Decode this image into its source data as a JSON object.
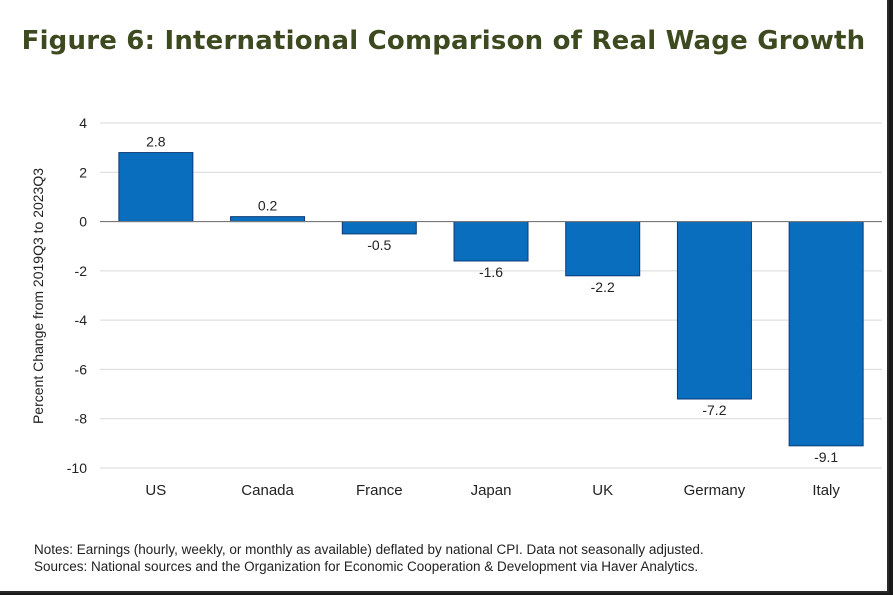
{
  "title": "Figure 6: International Comparison of Real Wage Growth",
  "chart_data": {
    "type": "bar",
    "categories": [
      "US",
      "Canada",
      "France",
      "Japan",
      "UK",
      "Germany",
      "Italy"
    ],
    "values": [
      2.8,
      0.2,
      -0.5,
      -1.6,
      -2.2,
      -7.2,
      -9.1
    ],
    "data_labels": [
      "2.8",
      "0.2",
      "-0.5",
      "-1.6",
      "-2.2",
      "-7.2",
      "-9.1"
    ],
    "ylabel": "Percent Change from 2019Q3 to 2023Q3",
    "ylim": [
      -10,
      4
    ],
    "yticks": [
      4,
      2,
      0,
      -2,
      -4,
      -6,
      -8,
      -10
    ],
    "grid": true,
    "bar_color": "#0a6ebf",
    "bar_edge_color": "#0b3a78"
  },
  "notes": [
    "Notes: Earnings (hourly, weekly, or monthly  as available) deflated by national CPI. Data not seasonally adjusted.",
    "Sources: National sources and the Organization for Economic Cooperation & Development via Haver Analytics."
  ]
}
